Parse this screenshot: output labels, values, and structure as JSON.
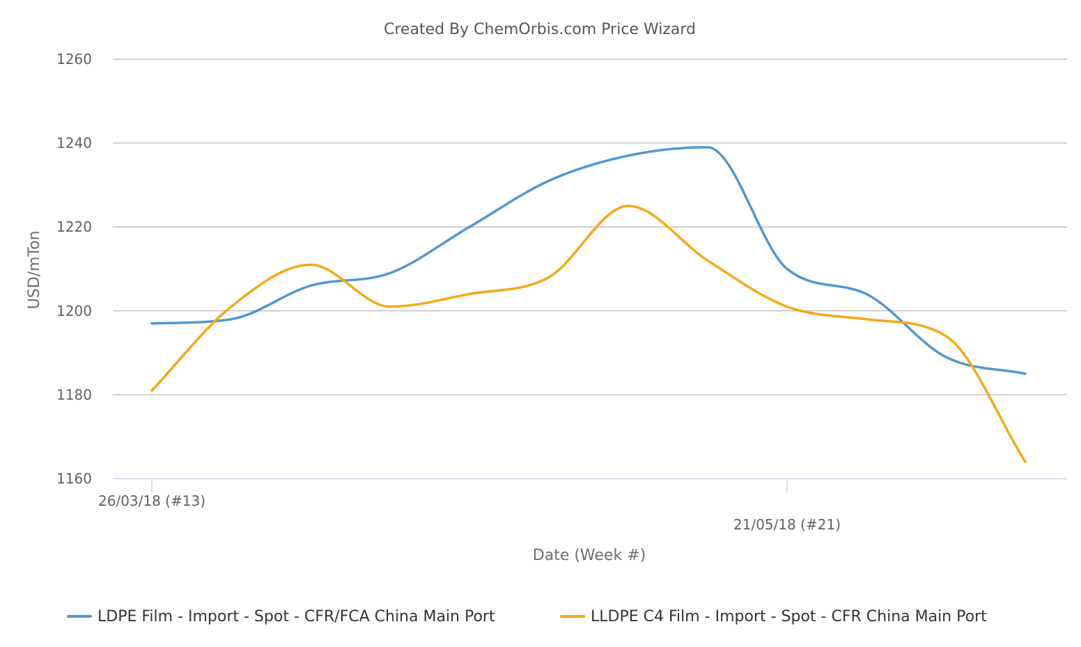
{
  "chart_data": {
    "type": "line",
    "title": "Created By ChemOrbis.com Price Wizard",
    "xlabel": "Date (Week #)",
    "ylabel": "USD/mTon",
    "ylim": [
      1160,
      1260
    ],
    "yticks": [
      1160,
      1180,
      1200,
      1220,
      1240,
      1260
    ],
    "x_tick_labels": [
      {
        "label": "26/03/18 (#13)",
        "week": 13
      },
      {
        "label": "21/05/18 (#21)",
        "week": 21
      }
    ],
    "x": [
      13,
      14,
      15,
      16,
      17,
      18,
      19,
      20,
      21,
      22,
      23,
      24
    ],
    "grid": true,
    "legend_position": "bottom",
    "series": [
      {
        "name": "LDPE Film - Import - Spot - CFR/FCA China Main Port",
        "color": "#4f98d0",
        "values": [
          1197,
          1198,
          1206,
          1209,
          1220,
          1231,
          1237,
          1239,
          1210,
          1204,
          1189,
          1185
        ]
      },
      {
        "name": "LLDPE C4 Film - Import - Spot - CFR China Main Port",
        "color": "#f5a815",
        "values": [
          1181,
          1201,
          1211,
          1201,
          1204,
          1208,
          1225,
          1212,
          1201,
          1198,
          1194,
          1164
        ]
      }
    ]
  }
}
